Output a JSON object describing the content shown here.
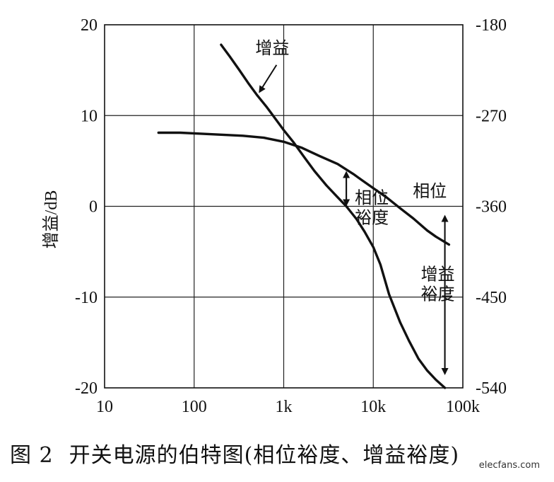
{
  "chart_data": {
    "type": "line",
    "title": "",
    "ylabel": "增益/dB",
    "x_scale": "log",
    "xlim": [
      10,
      100000
    ],
    "x_ticks": [
      10,
      100,
      1000,
      10000,
      100000
    ],
    "x_tick_labels": [
      "10",
      "100",
      "1k",
      "10k",
      "100k"
    ],
    "ylim": [
      -20,
      20
    ],
    "y_ticks": [
      20,
      10,
      0,
      -10,
      -20
    ],
    "y_tick_labels": [
      "20",
      "10",
      "0",
      "-10",
      "-20"
    ],
    "y2lim": [
      -540,
      -180
    ],
    "y2_ticks": [
      -180,
      -270,
      -360,
      -450,
      -540
    ],
    "y2_tick_labels": [
      "-180",
      "-270",
      "-360",
      "-450",
      "-540"
    ],
    "grid": true,
    "series": [
      {
        "name": "增益",
        "axis": "left",
        "x": [
          200,
          250,
          320,
          400,
          500,
          650,
          800,
          1000,
          1300,
          1700,
          2200,
          3000,
          4000,
          5000,
          6500,
          8000,
          10000,
          12000,
          15000,
          20000,
          25000,
          32000,
          40000,
          50000,
          63000
        ],
        "y": [
          17.8,
          16.5,
          15.0,
          13.6,
          12.3,
          10.9,
          9.7,
          8.4,
          7.0,
          5.4,
          3.9,
          2.3,
          1.0,
          0.0,
          -1.4,
          -2.8,
          -4.5,
          -6.4,
          -9.7,
          -12.8,
          -14.8,
          -16.8,
          -18.1,
          -19.1,
          -20.0
        ]
      },
      {
        "name": "相位",
        "axis": "right",
        "x": [
          40,
          70,
          120,
          200,
          350,
          600,
          1000,
          1600,
          2500,
          4000,
          6000,
          8000,
          10000,
          14000,
          20000,
          28000,
          40000,
          50000,
          70000
        ],
        "y": [
          -287,
          -287,
          -288,
          -289,
          -290,
          -292,
          -296,
          -302,
          -310,
          -318,
          -328,
          -336,
          -342,
          -351,
          -362,
          -372,
          -384,
          -390,
          -398
        ]
      }
    ],
    "annotations": [
      {
        "text": "增益",
        "target_series": "增益"
      },
      {
        "text": "相位",
        "target_series": "相位"
      },
      {
        "text": "相位\n裕度",
        "type": "double-arrow",
        "x": 5000
      },
      {
        "text": "增益\n裕度",
        "type": "double-arrow",
        "x": 63000
      }
    ]
  },
  "caption": {
    "figure_no": "图 2",
    "text": "开关电源的伯特图(相位裕度、增益裕度)"
  }
}
